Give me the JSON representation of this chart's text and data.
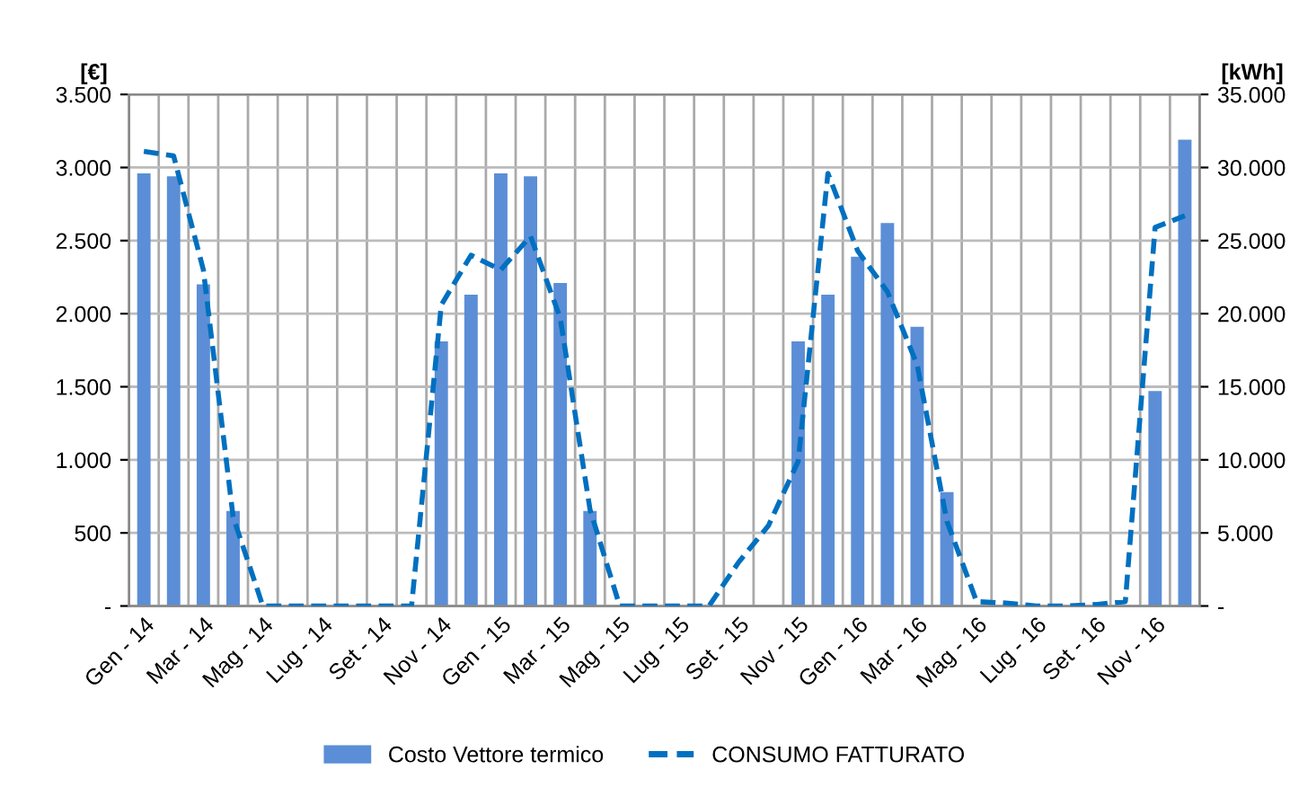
{
  "chart_data": {
    "type": "bar",
    "categories": [
      "Gen - 14",
      null,
      "Mar - 14",
      null,
      "Mag - 14",
      null,
      "Lug - 14",
      null,
      "Set - 14",
      null,
      "Nov - 14",
      null,
      "Gen - 15",
      null,
      "Mar - 15",
      null,
      "Mag - 15",
      null,
      "Lug - 15",
      null,
      "Set - 15",
      null,
      "Nov - 15",
      null,
      "Gen - 16",
      null,
      "Mar - 16",
      null,
      "Mag - 16",
      null,
      "Lug - 16",
      null,
      "Set - 16",
      null,
      "Nov - 16",
      null
    ],
    "ylabel": "[€]",
    "y2label": "[kWh]",
    "series": [
      {
        "name": "Costo Vettore termico",
        "color": "#5b8ed6",
        "values": [
          2960,
          2940,
          2200,
          650,
          0,
          0,
          0,
          0,
          0,
          0,
          1810,
          2130,
          2960,
          2940,
          2210,
          650,
          0,
          0,
          0,
          0,
          0,
          0,
          1810,
          2130,
          2390,
          2620,
          1910,
          780,
          null,
          null,
          0,
          0,
          null,
          null,
          1470,
          3190
        ]
      },
      {
        "name": "CONSUMO FATTURATO",
        "type": "line",
        "axis": "y2",
        "color": "#0070c0",
        "line_style": "dashed",
        "marker": "none",
        "values": [
          31100,
          30800,
          23000,
          6100,
          0,
          0,
          0,
          0,
          0,
          0,
          20600,
          24000,
          23000,
          25300,
          19700,
          6600,
          0,
          0,
          0,
          0,
          3000,
          5500,
          9900,
          29600,
          24300,
          21500,
          16500,
          5800,
          300,
          200,
          0,
          0,
          100,
          300,
          25900,
          26700
        ]
      }
    ],
    "ylim": [
      0,
      3500
    ],
    "yticks": [
      {
        "value": 0,
        "label": "-"
      },
      {
        "value": 500,
        "label": "500"
      },
      {
        "value": 1000,
        "label": "1.000"
      },
      {
        "value": 1500,
        "label": "1.500"
      },
      {
        "value": 2000,
        "label": "2.000"
      },
      {
        "value": 2500,
        "label": "2.500"
      },
      {
        "value": 3000,
        "label": "3.000"
      },
      {
        "value": 3500,
        "label": "3.500"
      }
    ],
    "y2lim": [
      0,
      35000
    ],
    "y2ticks": [
      {
        "value": 0,
        "label": "-"
      },
      {
        "value": 5000,
        "label": "5.000"
      },
      {
        "value": 10000,
        "label": "10.000"
      },
      {
        "value": 15000,
        "label": "15.000"
      },
      {
        "value": 20000,
        "label": "20.000"
      },
      {
        "value": 25000,
        "label": "25.000"
      },
      {
        "value": 30000,
        "label": "30.000"
      },
      {
        "value": 35000,
        "label": "35.000"
      }
    ],
    "grid": true,
    "legend": "bottom"
  }
}
